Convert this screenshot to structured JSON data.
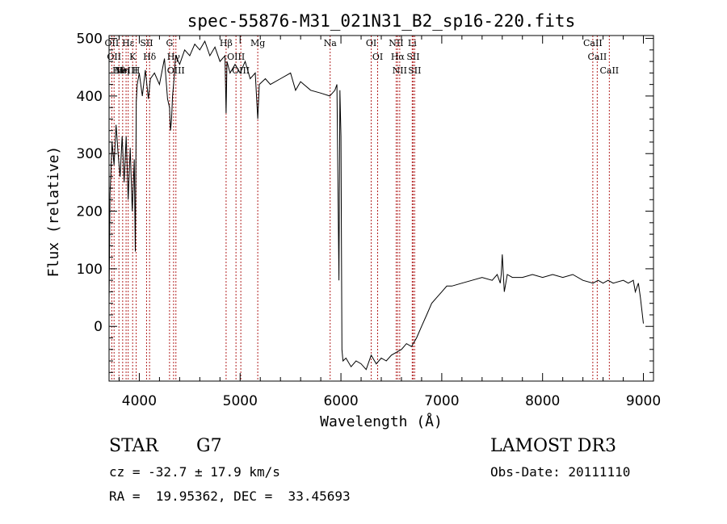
{
  "chart_data": {
    "type": "line",
    "title": "spec-55876-M31_021N31_B2_sp16-220.fits",
    "xlabel": "Wavelength (Å)",
    "ylabel": "Flux (relative)",
    "xlim": [
      3700,
      9100
    ],
    "ylim": [
      -95,
      505
    ],
    "xticks": [
      4000,
      5000,
      6000,
      7000,
      8000,
      9000
    ],
    "yticks": [
      0,
      100,
      200,
      300,
      400,
      500
    ],
    "grid": false,
    "series": [
      {
        "x": [
          3700,
          3710,
          3730,
          3750,
          3770,
          3790,
          3810,
          3830,
          3850,
          3870,
          3890,
          3910,
          3930,
          3950,
          3960,
          3970,
          3980,
          4000,
          4030,
          4060,
          4090,
          4110,
          4150,
          4200,
          4250,
          4280,
          4300,
          4310,
          4320,
          4330,
          4345,
          4360,
          4400,
          4450,
          4500,
          4550,
          4600,
          4650,
          4700,
          4750,
          4800,
          4850,
          4861,
          4870,
          4900,
          4950,
          5000,
          5050,
          5100,
          5150,
          5175,
          5190,
          5250,
          5300,
          5400,
          5500,
          5550,
          5600,
          5700,
          5800,
          5890,
          5940,
          5960,
          5980,
          5990,
          6000,
          6010,
          6020,
          6050,
          6100,
          6150,
          6200,
          6250,
          6300,
          6350,
          6400,
          6450,
          6500,
          6550,
          6600,
          6650,
          6700,
          6750,
          6800,
          6850,
          6900,
          6950,
          7000,
          7050,
          7100,
          7200,
          7300,
          7400,
          7500,
          7550,
          7580,
          7590,
          7600,
          7620,
          7650,
          7700,
          7800,
          7900,
          8000,
          8100,
          8200,
          8300,
          8400,
          8500,
          8550,
          8600,
          8650,
          8700,
          8800,
          8850,
          8900,
          8920,
          8950,
          8970,
          9000
        ],
        "y": [
          40,
          230,
          320,
          280,
          350,
          300,
          260,
          330,
          250,
          330,
          220,
          310,
          200,
          290,
          130,
          390,
          420,
          440,
          400,
          445,
          395,
          430,
          440,
          420,
          465,
          395,
          380,
          340,
          360,
          400,
          430,
          470,
          455,
          480,
          470,
          490,
          480,
          495,
          470,
          485,
          460,
          470,
          370,
          460,
          440,
          455,
          440,
          460,
          430,
          440,
          360,
          420,
          430,
          420,
          430,
          440,
          410,
          425,
          410,
          405,
          400,
          410,
          420,
          80,
          410,
          330,
          -40,
          -60,
          -55,
          -70,
          -60,
          -65,
          -75,
          -50,
          -65,
          -55,
          -60,
          -50,
          -45,
          -40,
          -30,
          -35,
          -20,
          0,
          20,
          40,
          50,
          60,
          70,
          70,
          75,
          80,
          85,
          80,
          90,
          75,
          90,
          125,
          60,
          90,
          85,
          85,
          90,
          85,
          90,
          85,
          90,
          80,
          75,
          80,
          75,
          80,
          75,
          80,
          75,
          80,
          60,
          75,
          50,
          5
        ]
      }
    ],
    "lines": [
      {
        "x": 3727,
        "labels": [
          "OII"
        ]
      },
      {
        "x": 3750,
        "labels": [
          "OII"
        ]
      },
      {
        "x": 3798,
        "labels": [
          "Hθ"
        ]
      },
      {
        "x": 3835,
        "labels": [
          "Hη"
        ]
      },
      {
        "x": 3869,
        "labels": [
          "NeIII"
        ]
      },
      {
        "x": 3890,
        "labels": [
          "Hε"
        ]
      },
      {
        "x": 3934,
        "labels": [
          "K"
        ]
      },
      {
        "x": 3969,
        "labels": [
          "H"
        ]
      },
      {
        "x": 4072,
        "labels": [
          "SII"
        ]
      },
      {
        "x": 4102,
        "labels": [
          "Hδ"
        ]
      },
      {
        "x": 4300,
        "labels": [
          "G"
        ]
      },
      {
        "x": 4340,
        "labels": [
          "Hγ"
        ]
      },
      {
        "x": 4363,
        "labels": [
          "OIII"
        ]
      },
      {
        "x": 4861,
        "labels": [
          "Hβ"
        ]
      },
      {
        "x": 4959,
        "labels": [
          "OIII"
        ]
      },
      {
        "x": 5007,
        "labels": [
          "OIII"
        ]
      },
      {
        "x": 5175,
        "labels": [
          "Mg"
        ]
      },
      {
        "x": 5893,
        "labels": [
          "Na"
        ]
      },
      {
        "x": 6300,
        "labels": [
          "OI"
        ]
      },
      {
        "x": 6364,
        "labels": [
          "OI"
        ]
      },
      {
        "x": 6548,
        "labels": [
          "NII"
        ]
      },
      {
        "x": 6563,
        "labels": [
          "Hα"
        ]
      },
      {
        "x": 6583,
        "labels": [
          "NII"
        ]
      },
      {
        "x": 6707,
        "labels": [
          "Li"
        ]
      },
      {
        "x": 6716,
        "labels": [
          "SII"
        ]
      },
      {
        "x": 6731,
        "labels": [
          "SII"
        ]
      },
      {
        "x": 8498,
        "labels": [
          "CaII"
        ]
      },
      {
        "x": 8542,
        "labels": [
          "CaII"
        ]
      },
      {
        "x": 8662,
        "labels": [
          "CaII"
        ]
      }
    ]
  },
  "info": {
    "class_label": "STAR",
    "subclass": "G7",
    "cz": "cz = -32.7 ± 17.9 km/s",
    "radec": "RA =  19.95362, DEC =  33.45693",
    "survey": "LAMOST DR3",
    "obsdate": "Obs-Date: 20111110"
  },
  "colors": {
    "line_marker": "#b22222",
    "spectrum": "#000000"
  }
}
